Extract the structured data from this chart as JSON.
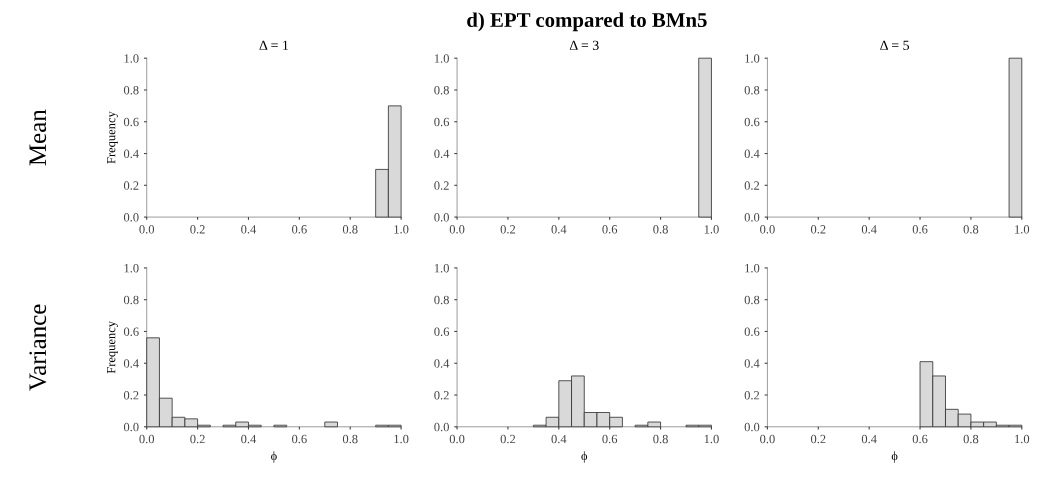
{
  "chart_data": [
    {
      "type": "histogram",
      "title": "Δ = 1",
      "ylabel": "Frequency",
      "annotations": [
        "d) EPT compared to BMn5",
        "Mean"
      ],
      "color": "#d9d9d9",
      "bins": [
        0.0,
        0.05,
        0.1,
        0.15,
        0.2,
        0.25,
        0.3,
        0.35,
        0.4,
        0.45,
        0.5,
        0.55,
        0.6,
        0.65,
        0.7,
        0.75,
        0.8,
        0.85,
        0.9,
        0.95,
        1.0
      ],
      "values": [
        0,
        0,
        0,
        0,
        0,
        0,
        0,
        0,
        0,
        0,
        0,
        0,
        0,
        0,
        0,
        0,
        0,
        0,
        0.3,
        0.7
      ],
      "xlim": [
        0,
        1
      ],
      "ylim": [
        0,
        1
      ],
      "xticks": [
        {
          "value": 0,
          "label": "0.0"
        },
        {
          "value": 0.2,
          "label": "0.2"
        },
        {
          "value": 0.4,
          "label": "0.4"
        },
        {
          "value": 0.6,
          "label": "0.6"
        },
        {
          "value": 0.8,
          "label": "0.8"
        },
        {
          "value": 1,
          "label": "1.0"
        }
      ],
      "yticks": [
        {
          "value": 0,
          "label": "0.0"
        },
        {
          "value": 0.2,
          "label": "0.2"
        },
        {
          "value": 0.4,
          "label": "0.4"
        },
        {
          "value": 0.6,
          "label": "0.6"
        },
        {
          "value": 0.8,
          "label": "0.8"
        },
        {
          "value": 1,
          "label": "1.0"
        }
      ]
    },
    {
      "type": "histogram",
      "title": "Δ = 3",
      "color": "#d9d9d9",
      "bins": [
        0.0,
        0.05,
        0.1,
        0.15,
        0.2,
        0.25,
        0.3,
        0.35,
        0.4,
        0.45,
        0.5,
        0.55,
        0.6,
        0.65,
        0.7,
        0.75,
        0.8,
        0.85,
        0.9,
        0.95,
        1.0
      ],
      "values": [
        0,
        0,
        0,
        0,
        0,
        0,
        0,
        0,
        0,
        0,
        0,
        0,
        0,
        0,
        0,
        0,
        0,
        0,
        0,
        1.0
      ],
      "xlim": [
        0,
        1
      ],
      "ylim": [
        0,
        1
      ],
      "xticks": [
        {
          "value": 0,
          "label": "0.0"
        },
        {
          "value": 0.2,
          "label": "0.2"
        },
        {
          "value": 0.4,
          "label": "0.4"
        },
        {
          "value": 0.6,
          "label": "0.6"
        },
        {
          "value": 0.8,
          "label": "0.8"
        },
        {
          "value": 1,
          "label": "1.0"
        }
      ],
      "yticks": [
        {
          "value": 0,
          "label": "0.0"
        },
        {
          "value": 0.2,
          "label": "0.2"
        },
        {
          "value": 0.4,
          "label": "0.4"
        },
        {
          "value": 0.6,
          "label": "0.6"
        },
        {
          "value": 0.8,
          "label": "0.8"
        },
        {
          "value": 1,
          "label": "1.0"
        }
      ]
    },
    {
      "type": "histogram",
      "title": "Δ = 5",
      "color": "#d9d9d9",
      "bins": [
        0.0,
        0.05,
        0.1,
        0.15,
        0.2,
        0.25,
        0.3,
        0.35,
        0.4,
        0.45,
        0.5,
        0.55,
        0.6,
        0.65,
        0.7,
        0.75,
        0.8,
        0.85,
        0.9,
        0.95,
        1.0
      ],
      "values": [
        0,
        0,
        0,
        0,
        0,
        0,
        0,
        0,
        0,
        0,
        0,
        0,
        0,
        0,
        0,
        0,
        0,
        0,
        0,
        1.0
      ],
      "xlim": [
        0,
        1
      ],
      "ylim": [
        0,
        1
      ],
      "xticks": [
        {
          "value": 0,
          "label": "0.0"
        },
        {
          "value": 0.2,
          "label": "0.2"
        },
        {
          "value": 0.4,
          "label": "0.4"
        },
        {
          "value": 0.6,
          "label": "0.6"
        },
        {
          "value": 0.8,
          "label": "0.8"
        },
        {
          "value": 1,
          "label": "1.0"
        }
      ],
      "yticks": [
        {
          "value": 0,
          "label": "0.0"
        },
        {
          "value": 0.2,
          "label": "0.2"
        },
        {
          "value": 0.4,
          "label": "0.4"
        },
        {
          "value": 0.6,
          "label": "0.6"
        },
        {
          "value": 0.8,
          "label": "0.8"
        },
        {
          "value": 1,
          "label": "1.0"
        }
      ]
    },
    {
      "type": "histogram",
      "xlabel": "ϕ",
      "ylabel": "Frequency",
      "annotations": [
        "Variance"
      ],
      "color": "#d9d9d9",
      "bins": [
        0.0,
        0.05,
        0.1,
        0.15,
        0.2,
        0.25,
        0.3,
        0.35,
        0.4,
        0.45,
        0.5,
        0.55,
        0.6,
        0.65,
        0.7,
        0.75,
        0.8,
        0.85,
        0.9,
        0.95,
        1.0
      ],
      "values": [
        0.56,
        0.18,
        0.06,
        0.05,
        0.01,
        0,
        0.01,
        0.03,
        0.01,
        0,
        0.01,
        0,
        0,
        0,
        0.03,
        0,
        0,
        0,
        0.01,
        0.01
      ],
      "xlim": [
        0,
        1
      ],
      "ylim": [
        0,
        1
      ],
      "xticks": [
        {
          "value": 0,
          "label": "0.0"
        },
        {
          "value": 0.2,
          "label": "0.2"
        },
        {
          "value": 0.4,
          "label": "0.4"
        },
        {
          "value": 0.6,
          "label": "0.6"
        },
        {
          "value": 0.8,
          "label": "0.8"
        },
        {
          "value": 1,
          "label": "1.0"
        }
      ],
      "yticks": [
        {
          "value": 0,
          "label": "0.0"
        },
        {
          "value": 0.2,
          "label": "0.2"
        },
        {
          "value": 0.4,
          "label": "0.4"
        },
        {
          "value": 0.6,
          "label": "0.6"
        },
        {
          "value": 0.8,
          "label": "0.8"
        },
        {
          "value": 1,
          "label": "1.0"
        }
      ]
    },
    {
      "type": "histogram",
      "xlabel": "ϕ",
      "color": "#d9d9d9",
      "bins": [
        0.0,
        0.05,
        0.1,
        0.15,
        0.2,
        0.25,
        0.3,
        0.35,
        0.4,
        0.45,
        0.5,
        0.55,
        0.6,
        0.65,
        0.7,
        0.75,
        0.8,
        0.85,
        0.9,
        0.95,
        1.0
      ],
      "values": [
        0,
        0,
        0,
        0,
        0,
        0,
        0.01,
        0.06,
        0.29,
        0.32,
        0.09,
        0.09,
        0.06,
        0,
        0.01,
        0.03,
        0,
        0,
        0.01,
        0.01
      ],
      "xlim": [
        0,
        1
      ],
      "ylim": [
        0,
        1
      ],
      "xticks": [
        {
          "value": 0,
          "label": "0.0"
        },
        {
          "value": 0.2,
          "label": "0.2"
        },
        {
          "value": 0.4,
          "label": "0.4"
        },
        {
          "value": 0.6,
          "label": "0.6"
        },
        {
          "value": 0.8,
          "label": "0.8"
        },
        {
          "value": 1,
          "label": "1.0"
        }
      ],
      "yticks": [
        {
          "value": 0,
          "label": "0.0"
        },
        {
          "value": 0.2,
          "label": "0.2"
        },
        {
          "value": 0.4,
          "label": "0.4"
        },
        {
          "value": 0.6,
          "label": "0.6"
        },
        {
          "value": 0.8,
          "label": "0.8"
        },
        {
          "value": 1,
          "label": "1.0"
        }
      ]
    },
    {
      "type": "histogram",
      "xlabel": "ϕ",
      "color": "#d9d9d9",
      "bins": [
        0.0,
        0.05,
        0.1,
        0.15,
        0.2,
        0.25,
        0.3,
        0.35,
        0.4,
        0.45,
        0.5,
        0.55,
        0.6,
        0.65,
        0.7,
        0.75,
        0.8,
        0.85,
        0.9,
        0.95,
        1.0
      ],
      "values": [
        0,
        0,
        0,
        0,
        0,
        0,
        0,
        0,
        0,
        0,
        0,
        0,
        0.41,
        0.32,
        0.11,
        0.08,
        0.03,
        0.03,
        0.01,
        0.01
      ],
      "xlim": [
        0,
        1
      ],
      "ylim": [
        0,
        1
      ],
      "xticks": [
        {
          "value": 0,
          "label": "0.0"
        },
        {
          "value": 0.2,
          "label": "0.2"
        },
        {
          "value": 0.4,
          "label": "0.4"
        },
        {
          "value": 0.6,
          "label": "0.6"
        },
        {
          "value": 0.8,
          "label": "0.8"
        },
        {
          "value": 1,
          "label": "1.0"
        }
      ],
      "yticks": [
        {
          "value": 0,
          "label": "0.0"
        },
        {
          "value": 0.2,
          "label": "0.2"
        },
        {
          "value": 0.4,
          "label": "0.4"
        },
        {
          "value": 0.6,
          "label": "0.6"
        },
        {
          "value": 0.8,
          "label": "0.8"
        },
        {
          "value": 1,
          "label": "1.0"
        }
      ]
    }
  ]
}
